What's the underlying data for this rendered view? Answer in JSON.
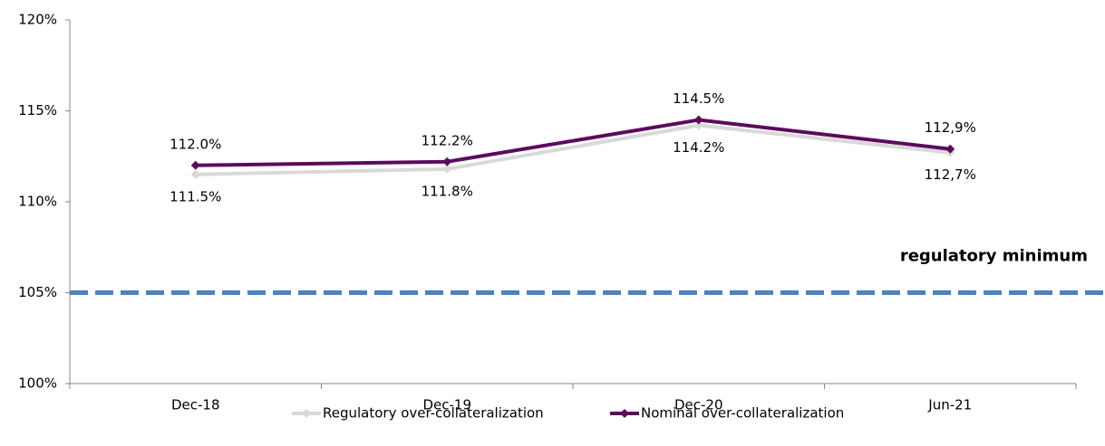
{
  "chart_data": {
    "type": "line",
    "categories": [
      "Dec-18",
      "Dec-19",
      "Dec-20",
      "Jun-21"
    ],
    "series": [
      {
        "name": "Regulatory over-collateralization",
        "color": "#d9d9d9",
        "values": [
          111.5,
          111.8,
          114.2,
          112.7
        ],
        "value_labels": [
          "111.5%",
          "111.8%",
          "114.2%",
          "112,7%"
        ]
      },
      {
        "name": "Nominal over-collateralization",
        "color": "#5c0a5c",
        "values": [
          112.0,
          112.2,
          114.5,
          112.9
        ],
        "value_labels": [
          "112.0%",
          "112.2%",
          "114.5%",
          "112,9%"
        ]
      }
    ],
    "ylim": [
      100,
      120
    ],
    "yticks": [
      {
        "value": 100,
        "label": "100%"
      },
      {
        "value": 105,
        "label": "105%"
      },
      {
        "value": 110,
        "label": "110%"
      },
      {
        "value": 115,
        "label": "115%"
      },
      {
        "value": 120,
        "label": "120%"
      }
    ],
    "reference_line": {
      "value": 105,
      "label": "regulatory minimum",
      "color": "#4f81bd",
      "label_color": "#8eb4e3"
    },
    "legend": "bottom"
  }
}
